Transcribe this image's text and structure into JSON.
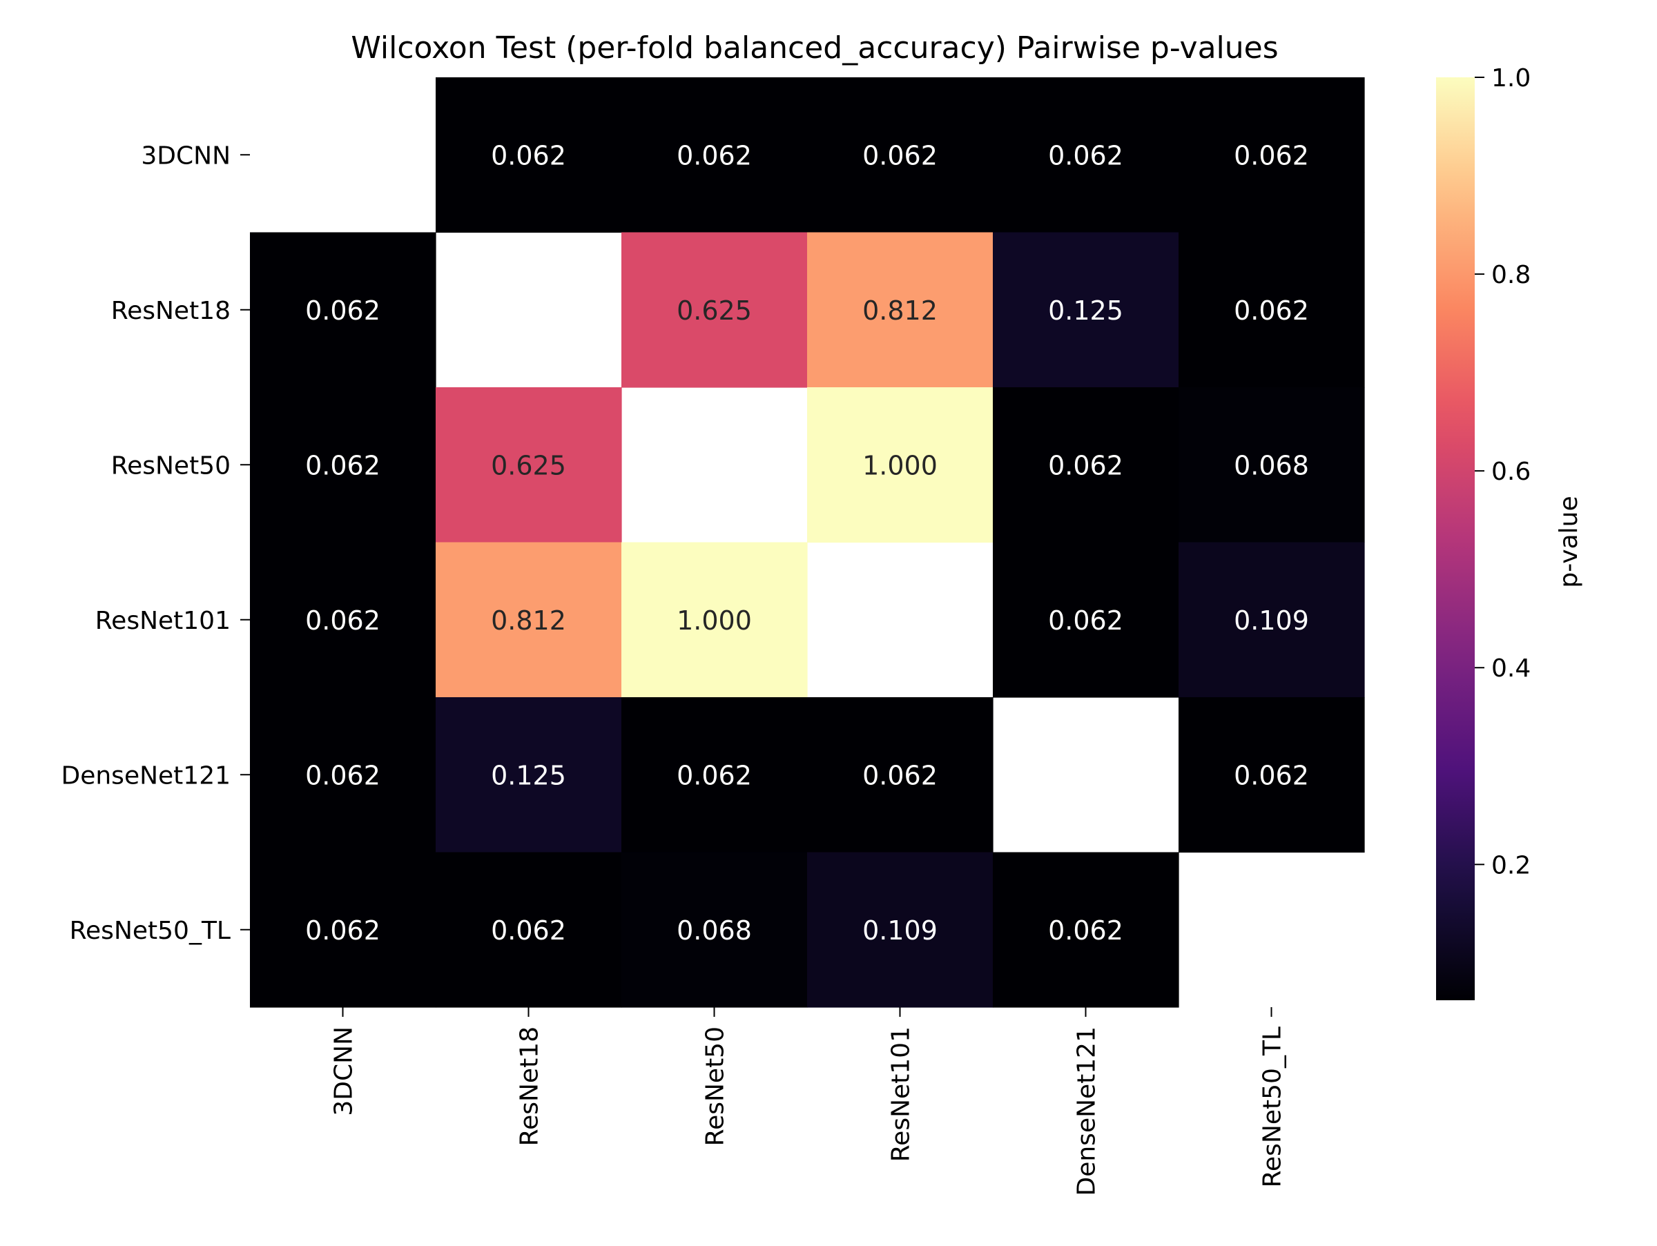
{
  "chart_data": {
    "type": "heatmap",
    "title": "Wilcoxon Test (per-fold balanced_accuracy) Pairwise p-values",
    "row_labels": [
      "3DCNN",
      "ResNet18",
      "ResNet50",
      "ResNet101",
      "DenseNet121",
      "ResNet50_TL"
    ],
    "col_labels": [
      "3DCNN",
      "ResNet18",
      "ResNet50",
      "ResNet101",
      "DenseNet121",
      "ResNet50_TL"
    ],
    "values": [
      [
        null,
        0.062,
        0.062,
        0.062,
        0.062,
        0.062
      ],
      [
        0.062,
        null,
        0.625,
        0.812,
        0.125,
        0.062
      ],
      [
        0.062,
        0.625,
        null,
        1.0,
        0.062,
        0.068
      ],
      [
        0.062,
        0.812,
        1.0,
        null,
        0.062,
        0.109
      ],
      [
        0.062,
        0.125,
        0.062,
        0.062,
        null,
        0.062
      ],
      [
        0.062,
        0.062,
        0.068,
        0.109,
        0.062,
        null
      ]
    ],
    "value_format": "3 decimals",
    "mask": "diagonal and missing cells left blank",
    "colormap": "magma",
    "colorbar": {
      "label": "p-value",
      "range": [
        0.062,
        1.0
      ],
      "ticks": [
        0.2,
        0.4,
        0.6,
        0.8,
        1.0
      ],
      "tick_labels": [
        "0.2",
        "0.4",
        "0.6",
        "0.8",
        "1.0"
      ]
    }
  }
}
